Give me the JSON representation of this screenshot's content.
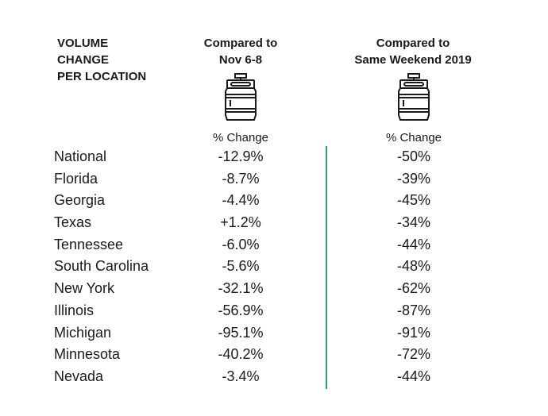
{
  "header": {
    "label_lines": [
      "VOLUME",
      "CHANGE",
      "PER LOCATION"
    ],
    "col1_lines": [
      "Compared to",
      "Nov 6-8"
    ],
    "col2_lines": [
      "Compared to",
      "Same Weekend 2019"
    ],
    "col1_sub": "% Change",
    "col2_sub": "% Change",
    "icon": "beer-keg-icon"
  },
  "colors": {
    "divider": "#2a9d8f",
    "text": "#1a1a1a"
  },
  "rows": [
    {
      "location": "National",
      "vs_nov": "-12.9%",
      "vs_2019": "-50%"
    },
    {
      "location": "Florida",
      "vs_nov": "-8.7%",
      "vs_2019": "-39%"
    },
    {
      "location": "Georgia",
      "vs_nov": "-4.4%",
      "vs_2019": "-45%"
    },
    {
      "location": "Texas",
      "vs_nov": "+1.2%",
      "vs_2019": "-34%"
    },
    {
      "location": "Tennessee",
      "vs_nov": "-6.0%",
      "vs_2019": "-44%"
    },
    {
      "location": "South Carolina",
      "vs_nov": "-5.6%",
      "vs_2019": "-48%"
    },
    {
      "location": "New York",
      "vs_nov": "-32.1%",
      "vs_2019": "-62%"
    },
    {
      "location": "Illinois",
      "vs_nov": "-56.9%",
      "vs_2019": "-87%"
    },
    {
      "location": "Michigan",
      "vs_nov": "-95.1%",
      "vs_2019": "-91%"
    },
    {
      "location": "Minnesota",
      "vs_nov": "-40.2%",
      "vs_2019": "-72%"
    },
    {
      "location": "Nevada",
      "vs_nov": "-3.4%",
      "vs_2019": "-44%"
    }
  ]
}
